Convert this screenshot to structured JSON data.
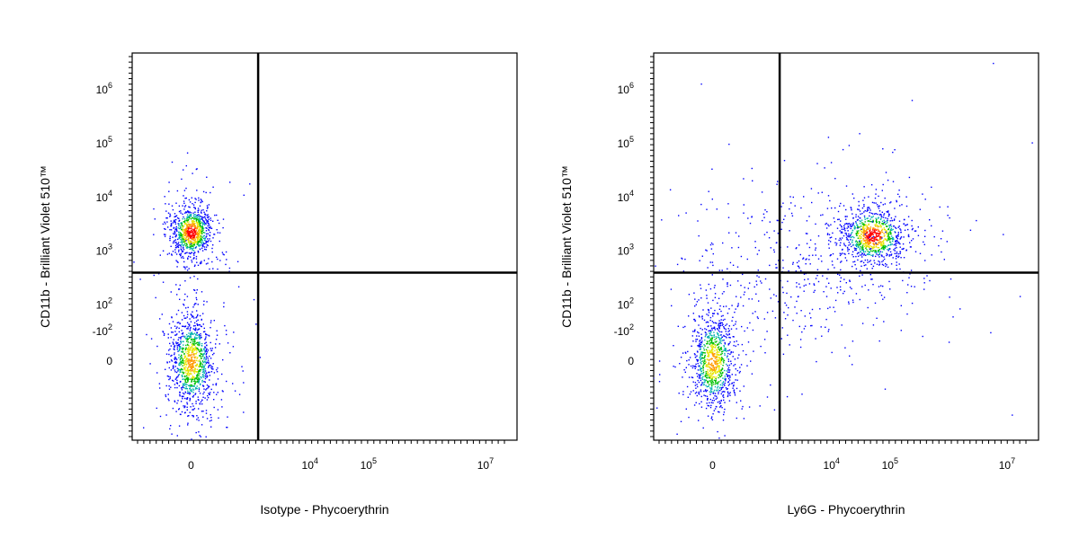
{
  "chart_data": [
    {
      "type": "scatter",
      "title": "",
      "xlabel": "Isotype - Phycoerythrin",
      "ylabel": "CD11b - Brilliant Violet 510™",
      "x_scale": "biexponential",
      "y_scale": "biexponential",
      "xlim": [
        -300,
        10000000
      ],
      "ylim": [
        -300,
        2000000
      ],
      "grid": false,
      "x_tick_labels": [
        "0",
        "10",
        "10"
      ],
      "x_tick_sup": [
        "",
        "4",
        "5"
      ],
      "x_tick_label_7": "10",
      "x_tick_sup_7": "7",
      "y_tick_labels": [
        "-10",
        "0",
        "10",
        "10",
        "10",
        "10",
        "10"
      ],
      "y_tick_sup": [
        "2",
        "",
        "2",
        "3",
        "4",
        "5",
        "6"
      ],
      "gates": {
        "x": 1300,
        "y": 400
      },
      "populations": [
        {
          "name_hidden": "cd11b-pos-isotype-neg",
          "x_center": 0,
          "y_center": 2300,
          "count": 900
        },
        {
          "name_hidden": "double-neg",
          "x_center": 0,
          "y_center": 0,
          "count": 1100
        }
      ],
      "colors": {
        "sparse": "#0000ff",
        "mid": "#00c000",
        "dense": "#ff0000"
      }
    },
    {
      "type": "scatter",
      "title": "",
      "xlabel": "Ly6G - Phycoerythrin",
      "ylabel": "CD11b - Brilliant Violet 510™",
      "x_scale": "biexponential",
      "y_scale": "biexponential",
      "xlim": [
        -300,
        10000000
      ],
      "ylim": [
        -300,
        2000000
      ],
      "grid": false,
      "x_tick_labels": [
        "0",
        "10",
        "10"
      ],
      "x_tick_sup": [
        "",
        "4",
        "5"
      ],
      "x_tick_label_7": "10",
      "x_tick_sup_7": "7",
      "y_tick_labels": [
        "-10",
        "0",
        "10",
        "10",
        "10",
        "10",
        "10"
      ],
      "y_tick_sup": [
        "2",
        "",
        "2",
        "3",
        "4",
        "5",
        "6"
      ],
      "gates": {
        "x": 1300,
        "y": 400
      },
      "populations": [
        {
          "name_hidden": "cd11b-pos-ly6g-pos",
          "x_center": 50000,
          "y_center": 2000,
          "count": 1000
        },
        {
          "name_hidden": "double-neg",
          "x_center": 0,
          "y_center": 0,
          "count": 1000
        },
        {
          "name_hidden": "scatter",
          "x_center": 3000,
          "y_center": 500,
          "count": 400
        }
      ],
      "colors": {
        "sparse": "#0000ff",
        "mid": "#00c000",
        "dense": "#ff0000"
      }
    }
  ]
}
